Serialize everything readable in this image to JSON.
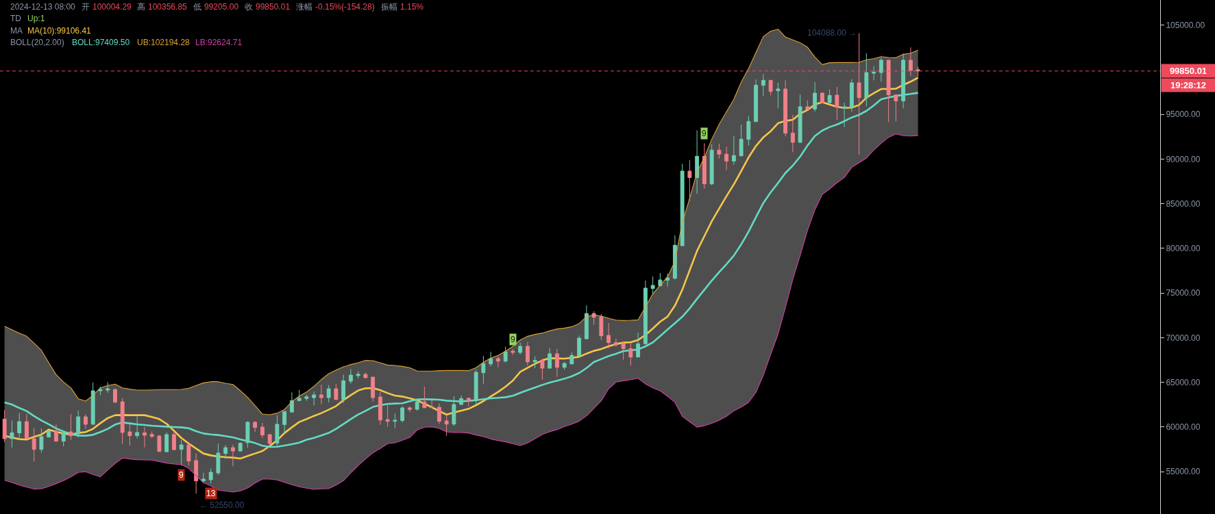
{
  "chart_data": {
    "type": "candlestick",
    "categories": [
      null,
      null,
      null,
      null,
      null,
      null,
      null,
      null,
      null,
      null,
      null,
      null,
      null,
      null,
      null,
      null,
      null,
      null,
      null,
      null,
      null,
      null,
      null,
      null,
      null,
      null,
      null,
      null,
      null,
      null,
      null,
      null,
      null,
      null,
      null,
      null,
      null,
      null,
      null,
      null,
      null,
      null,
      null,
      null,
      null,
      null,
      null,
      null,
      null,
      null,
      null,
      null,
      null,
      null,
      null,
      null,
      null,
      null,
      null,
      null,
      null,
      null,
      null,
      null,
      null,
      null,
      null,
      null,
      null,
      null,
      null,
      null,
      null,
      null,
      null,
      null,
      null,
      null,
      null,
      null,
      null,
      null,
      null,
      null,
      null,
      null,
      null,
      null,
      null,
      null,
      null,
      null,
      null,
      null,
      null,
      null,
      null,
      null,
      null,
      null,
      null,
      null,
      null,
      null,
      null,
      null,
      null,
      null,
      null,
      null,
      null,
      null,
      null,
      null,
      null,
      null,
      null,
      null,
      null,
      null,
      null,
      null,
      null,
      null,
      null
    ],
    "ohlc": [
      [
        60890,
        61910,
        58340,
        58700
      ],
      [
        58700,
        60740,
        57700,
        59360
      ],
      [
        59340,
        61560,
        58570,
        60610
      ],
      [
        60610,
        61480,
        58650,
        58700
      ],
      [
        58700,
        59870,
        56120,
        57500
      ],
      [
        57500,
        59850,
        57140,
        58930
      ],
      [
        58880,
        59670,
        58820,
        59560
      ],
      [
        59540,
        60310,
        58380,
        58420
      ],
      [
        58420,
        59540,
        57830,
        59360
      ],
      [
        59460,
        61450,
        58570,
        59030
      ],
      [
        59230,
        61840,
        58820,
        61150
      ],
      [
        61150,
        61430,
        59770,
        60310
      ],
      [
        60310,
        64980,
        60280,
        64060
      ],
      [
        64060,
        64520,
        63570,
        64210
      ],
      [
        64140,
        65030,
        63830,
        64290
      ],
      [
        64210,
        64300,
        62700,
        62780
      ],
      [
        62830,
        63240,
        58090,
        59390
      ],
      [
        59460,
        60280,
        57930,
        59030
      ],
      [
        59030,
        61200,
        58720,
        59390
      ],
      [
        59360,
        60000,
        57730,
        59080
      ],
      [
        59180,
        59510,
        58770,
        58950
      ],
      [
        59000,
        59110,
        57220,
        57270
      ],
      [
        57240,
        59410,
        57170,
        59160
      ],
      [
        59160,
        59510,
        57430,
        57470
      ],
      [
        57500,
        58540,
        55690,
        58010
      ],
      [
        58010,
        58290,
        55710,
        56200
      ],
      [
        56250,
        57060,
        52550,
        53970
      ],
      [
        53970,
        54890,
        53770,
        54180
      ],
      [
        54100,
        55380,
        53670,
        54940
      ],
      [
        54870,
        58140,
        54660,
        57090
      ],
      [
        57040,
        58010,
        56430,
        57700
      ],
      [
        57700,
        58010,
        55610,
        57320
      ],
      [
        57320,
        58290,
        57280,
        58190
      ],
      [
        58260,
        60660,
        57700,
        60540
      ],
      [
        60540,
        60660,
        59460,
        59950
      ],
      [
        60000,
        60460,
        58770,
        59110
      ],
      [
        59160,
        59200,
        57850,
        58160
      ],
      [
        58190,
        61330,
        57750,
        60310
      ],
      [
        60280,
        61760,
        59280,
        61740
      ],
      [
        61680,
        63880,
        61610,
        62960
      ],
      [
        62960,
        64160,
        62860,
        63220
      ],
      [
        63200,
        63600,
        62950,
        63380
      ],
      [
        63290,
        63980,
        62430,
        63600
      ],
      [
        63600,
        64750,
        62550,
        63290
      ],
      [
        63290,
        64700,
        62760,
        64290
      ],
      [
        64290,
        64830,
        63010,
        63090
      ],
      [
        63090,
        65870,
        62710,
        65180
      ],
      [
        65130,
        66490,
        64850,
        65820
      ],
      [
        65750,
        66260,
        65460,
        65920
      ],
      [
        65900,
        66130,
        65470,
        65520
      ],
      [
        65590,
        65640,
        62860,
        63290
      ],
      [
        63370,
        63930,
        60260,
        60790
      ],
      [
        60840,
        62400,
        60030,
        60640
      ],
      [
        60640,
        61510,
        59870,
        60770
      ],
      [
        60720,
        62320,
        60510,
        62150
      ],
      [
        62150,
        62320,
        61690,
        61970
      ],
      [
        61990,
        63120,
        61840,
        62810
      ],
      [
        62810,
        64520,
        62120,
        62170
      ],
      [
        62270,
        63010,
        62090,
        62170
      ],
      [
        62220,
        62660,
        60360,
        60640
      ],
      [
        60690,
        61330,
        59010,
        60330
      ],
      [
        60330,
        63450,
        60130,
        62530
      ],
      [
        62530,
        63550,
        62450,
        63190
      ],
      [
        63220,
        63320,
        62300,
        62940
      ],
      [
        62940,
        66430,
        62600,
        66130
      ],
      [
        66080,
        67970,
        64850,
        67120
      ],
      [
        67070,
        68430,
        66790,
        67660
      ],
      [
        67660,
        67910,
        66690,
        67380
      ],
      [
        67380,
        69010,
        67230,
        68430
      ],
      [
        68500,
        68710,
        68070,
        68350
      ],
      [
        68350,
        69450,
        68140,
        69040
      ],
      [
        69040,
        69520,
        66890,
        67300
      ],
      [
        67300,
        67920,
        66610,
        67460
      ],
      [
        67460,
        67660,
        65290,
        66590
      ],
      [
        66590,
        68860,
        66550,
        68200
      ],
      [
        68200,
        68760,
        65620,
        66690
      ],
      [
        66690,
        67280,
        66430,
        67120
      ],
      [
        67070,
        68350,
        67000,
        68020
      ],
      [
        67970,
        70240,
        67930,
        69960
      ],
      [
        69880,
        73630,
        69800,
        72710
      ],
      [
        72710,
        72970,
        71440,
        72280
      ],
      [
        72330,
        72660,
        69730,
        70210
      ],
      [
        70260,
        71640,
        68830,
        69450
      ],
      [
        69450,
        69910,
        68990,
        69190
      ],
      [
        69370,
        69500,
        67530,
        68780
      ],
      [
        68780,
        69420,
        66870,
        67840
      ],
      [
        67840,
        70570,
        67790,
        69320
      ],
      [
        69320,
        76390,
        69240,
        75550
      ],
      [
        75500,
        76850,
        74860,
        75860
      ],
      [
        75810,
        77240,
        75750,
        76470
      ],
      [
        76440,
        77190,
        75730,
        76700
      ],
      [
        76650,
        81470,
        76520,
        80350
      ],
      [
        80300,
        89470,
        80220,
        88650
      ],
      [
        88650,
        89870,
        85330,
        87930
      ],
      [
        87930,
        93220,
        86100,
        90310
      ],
      [
        90310,
        91760,
        86680,
        87220
      ],
      [
        87220,
        91640,
        87070,
        91000
      ],
      [
        91000,
        91710,
        90050,
        90540
      ],
      [
        90540,
        91380,
        88730,
        89770
      ],
      [
        89770,
        92550,
        89360,
        90390
      ],
      [
        90360,
        93860,
        90310,
        92220
      ],
      [
        92200,
        94830,
        91510,
        94210
      ],
      [
        94190,
        98910,
        94140,
        98270
      ],
      [
        98250,
        99500,
        97070,
        98810
      ],
      [
        98810,
        98860,
        97120,
        97560
      ],
      [
        97640,
        98530,
        95670,
        97840
      ],
      [
        97840,
        98810,
        92550,
        92890
      ],
      [
        92910,
        94950,
        90770,
        91870
      ],
      [
        91870,
        97200,
        91790,
        95850
      ],
      [
        95850,
        96560,
        95540,
        95590
      ],
      [
        95590,
        98610,
        95290,
        97380
      ],
      [
        97380,
        97460,
        96260,
        96310
      ],
      [
        96310,
        97790,
        96230,
        97120
      ],
      [
        97150,
        98070,
        94390,
        95800
      ],
      [
        95670,
        96310,
        93580,
        95850
      ],
      [
        95800,
        98940,
        95290,
        98530
      ],
      [
        98530,
        104088,
        90490,
        96870
      ],
      [
        96870,
        101850,
        95920,
        99680
      ],
      [
        99600,
        100390,
        98810,
        99730
      ],
      [
        99680,
        101290,
        98660,
        101060
      ],
      [
        101060,
        101100,
        94140,
        97180
      ],
      [
        97180,
        97230,
        94240,
        96510
      ],
      [
        96510,
        101800,
        95670,
        101060
      ],
      [
        101060,
        102490,
        99290,
        99930
      ],
      [
        100004.29,
        100356.85,
        99205.0,
        99850.01
      ]
    ],
    "colors": [
      "#f08089",
      "#6bcfb3",
      "#6bcfb3",
      "#f08089",
      "#f08089",
      "#6bcfb3",
      "#6bcfb3",
      "#f08089",
      "#6bcfb3",
      "#f08089",
      "#6bcfb3",
      "#f08089",
      "#6bcfb3",
      "#6bcfb3",
      "#6bcfb3",
      "#f08089",
      "#f08089",
      "#f08089",
      "#6bcfb3",
      "#f08089",
      "#f08089",
      "#f08089",
      "#6bcfb3",
      "#f08089",
      "#6bcfb3",
      "#f08089",
      "#f08089",
      "#6bcfb3",
      "#6bcfb3",
      "#6bcfb3",
      "#6bcfb3",
      "#f08089",
      "#6bcfb3",
      "#6bcfb3",
      "#f08089",
      "#f08089",
      "#f08089",
      "#6bcfb3",
      "#6bcfb3",
      "#6bcfb3",
      "#6bcfb3",
      "#6bcfb3",
      "#6bcfb3",
      "#f08089",
      "#6bcfb3",
      "#f08089",
      "#6bcfb3",
      "#6bcfb3",
      "#6bcfb3",
      "#f08089",
      "#f08089",
      "#f08089",
      "#f08089",
      "#6bcfb3",
      "#6bcfb3",
      "#f08089",
      "#6bcfb3",
      "#f08089",
      "#f08089",
      "#f08089",
      "#f08089",
      "#6bcfb3",
      "#6bcfb3",
      "#f08089",
      "#6bcfb3",
      "#6bcfb3",
      "#6bcfb3",
      "#f08089",
      "#6bcfb3",
      "#f08089",
      "#6bcfb3",
      "#f08089",
      "#6bcfb3",
      "#f08089",
      "#6bcfb3",
      "#f08089",
      "#6bcfb3",
      "#6bcfb3",
      "#6bcfb3",
      "#6bcfb3",
      "#f08089",
      "#f08089",
      "#f08089",
      "#f08089",
      "#f08089",
      "#f08089",
      "#6bcfb3",
      "#6bcfb3",
      "#6bcfb3",
      "#6bcfb3",
      "#6bcfb3",
      "#6bcfb3",
      "#6bcfb3",
      "#f08089",
      "#6bcfb3",
      "#f08089",
      "#6bcfb3",
      "#f08089",
      "#f08089",
      "#6bcfb3",
      "#6bcfb3",
      "#6bcfb3",
      "#6bcfb3",
      "#6bcfb3",
      "#f08089",
      "#6bcfb3",
      "#f08089",
      "#f08089",
      "#6bcfb3",
      "#f08089",
      "#6bcfb3",
      "#f08089",
      "#6bcfb3",
      "#f08089",
      "#6bcfb3",
      "#6bcfb3",
      "#f08089",
      "#6bcfb3",
      "#6bcfb3",
      "#6bcfb3",
      "#f08089",
      "#f08089",
      "#6bcfb3",
      "#f08089",
      "#f08089"
    ],
    "series": [
      {
        "name": "MA(10):99106.41",
        "type": "line",
        "color": "#f7c64a",
        "values": [
          59030,
          58830,
          58650,
          58600,
          58900,
          59160,
          59720,
          59490,
          59280,
          59160,
          59340,
          59440,
          59800,
          60430,
          61000,
          61330,
          61350,
          61330,
          61330,
          61330,
          61120,
          60890,
          60360,
          59590,
          58770,
          58160,
          57600,
          57040,
          56830,
          56710,
          56630,
          56580,
          56480,
          56760,
          57040,
          57320,
          57880,
          58520,
          59340,
          59970,
          60560,
          60900,
          61250,
          61560,
          61940,
          62350,
          63010,
          63570,
          64090,
          64340,
          64370,
          64140,
          63800,
          63520,
          63420,
          63220,
          63010,
          62600,
          62220,
          61790,
          61400,
          61630,
          61840,
          62040,
          62450,
          62910,
          63420,
          63930,
          64520,
          65210,
          66180,
          66640,
          67070,
          67460,
          67710,
          67690,
          67660,
          67760,
          67860,
          68220,
          68530,
          68730,
          69040,
          69290,
          69450,
          69500,
          69750,
          70310,
          71030,
          71800,
          72360,
          73590,
          75370,
          77540,
          79710,
          81370,
          83030,
          84440,
          85840,
          87170,
          88650,
          90180,
          91460,
          92430,
          93120,
          94010,
          94270,
          94390,
          95080,
          95490,
          96100,
          96360,
          96100,
          95850,
          95720,
          95750,
          96050,
          96870,
          97380,
          97840,
          97840,
          97870,
          98300,
          98660,
          99106.41
        ]
      },
      {
        "name": "BOLL:97409.50",
        "type": "line",
        "color": "#62dcc4",
        "values": [
          62760,
          62530,
          62140,
          61790,
          61230,
          60740,
          60310,
          59850,
          59510,
          59230,
          59050,
          59030,
          59130,
          59440,
          59800,
          60280,
          60510,
          60410,
          60310,
          60230,
          60150,
          60100,
          60050,
          60000,
          59970,
          59870,
          59540,
          59280,
          59180,
          59110,
          58980,
          58850,
          58620,
          58420,
          58210,
          57910,
          57780,
          57800,
          57930,
          58080,
          58260,
          58580,
          58800,
          59060,
          59340,
          59800,
          60330,
          60890,
          61400,
          61810,
          62250,
          62450,
          62580,
          62630,
          62660,
          62890,
          63090,
          63120,
          63090,
          63060,
          62960,
          62910,
          62860,
          62940,
          63010,
          63120,
          63220,
          63270,
          63340,
          63500,
          63830,
          64140,
          64420,
          64720,
          64980,
          65180,
          65410,
          65690,
          66050,
          66610,
          67280,
          67610,
          67940,
          68200,
          68500,
          68600,
          68680,
          69040,
          69470,
          70190,
          70910,
          71630,
          72350,
          73280,
          74350,
          75370,
          76390,
          77340,
          78230,
          79200,
          80450,
          81880,
          83490,
          85070,
          86270,
          87320,
          88440,
          89260,
          90280,
          91510,
          92580,
          93190,
          93580,
          93860,
          94240,
          94650,
          94950,
          95390,
          96000,
          96690,
          96890,
          97050,
          97180,
          97280,
          97409.5
        ],
        "lower": [
          54050,
          53800,
          53510,
          53280,
          53060,
          53080,
          53360,
          53670,
          54000,
          54430,
          54920,
          55000,
          54690,
          54430,
          55200,
          55910,
          56530,
          56430,
          56350,
          56320,
          56300,
          56140,
          55970,
          55860,
          55790,
          55380,
          54560,
          53770,
          53410,
          52950,
          52830,
          52720,
          52850,
          53180,
          53740,
          54180,
          54180,
          54080,
          53820,
          53540,
          53310,
          53160,
          53030,
          53080,
          53100,
          53500,
          54000,
          54870,
          55710,
          56430,
          57120,
          57600,
          58140,
          58240,
          58520,
          58830,
          59670,
          59980,
          60030,
          59850,
          59460,
          59390,
          59390,
          59340,
          59110,
          58930,
          58670,
          58490,
          58340,
          58140,
          57930,
          58210,
          58700,
          59180,
          59490,
          59720,
          60050,
          60330,
          60660,
          61250,
          62090,
          62940,
          64290,
          65030,
          65180,
          65310,
          65460,
          64830,
          64390,
          64060,
          63450,
          62760,
          61200,
          60590,
          59990,
          60160,
          60420,
          60770,
          61200,
          61810,
          62240,
          62760,
          63890,
          65790,
          68130,
          70400,
          73380,
          76520,
          79200,
          82010,
          84310,
          86040,
          86660,
          87350,
          87930,
          89060,
          89590,
          90100,
          91020,
          91760,
          92430,
          92810,
          92610,
          92580,
          92624.71
        ],
        "upper": [
          71280,
          70900,
          70520,
          70160,
          69390,
          68580,
          67200,
          65870,
          65050,
          64390,
          63170,
          62910,
          63550,
          64390,
          64650,
          64800,
          64390,
          64240,
          64140,
          64140,
          64160,
          64190,
          64190,
          64190,
          64210,
          64340,
          64650,
          64950,
          65080,
          65080,
          64900,
          64770,
          64080,
          63320,
          62400,
          61450,
          61380,
          61560,
          61970,
          62860,
          63470,
          63930,
          64560,
          65320,
          65970,
          66380,
          66740,
          67000,
          67200,
          67460,
          67430,
          67200,
          66940,
          66890,
          66790,
          66640,
          66280,
          66260,
          66260,
          66310,
          66330,
          66330,
          66330,
          66310,
          66640,
          67250,
          67710,
          68020,
          68480,
          69040,
          69750,
          70160,
          70370,
          70520,
          70770,
          70980,
          71080,
          71230,
          71590,
          72360,
          72560,
          72430,
          72180,
          71970,
          71920,
          71950,
          72000,
          73450,
          74910,
          75880,
          76800,
          78560,
          82900,
          85590,
          88520,
          90180,
          92220,
          93880,
          95290,
          96690,
          98610,
          100140,
          101920,
          103710,
          104320,
          104530,
          103660,
          103330,
          103020,
          102510,
          101410,
          100570,
          100780,
          100800,
          100800,
          100800,
          100830,
          101110,
          101230,
          101460,
          101360,
          101340,
          101720,
          101850,
          102194.28
        ]
      },
      {
        "name": "UB:102194.28",
        "type": "line",
        "color": "#dca236",
        "values": [
          71280,
          70900,
          70520,
          70160,
          69390,
          68580,
          67200,
          65870,
          65050,
          64390,
          63170,
          62910,
          63550,
          64390,
          64650,
          64800,
          64390,
          64240,
          64140,
          64140,
          64160,
          64190,
          64190,
          64190,
          64210,
          64340,
          64650,
          64950,
          65080,
          65080,
          64900,
          64770,
          64080,
          63320,
          62400,
          61450,
          61380,
          61560,
          61970,
          62860,
          63470,
          63930,
          64560,
          65320,
          65970,
          66380,
          66740,
          67000,
          67200,
          67460,
          67430,
          67200,
          66940,
          66890,
          66790,
          66640,
          66280,
          66260,
          66260,
          66310,
          66330,
          66330,
          66330,
          66310,
          66640,
          67250,
          67710,
          68020,
          68480,
          69040,
          69750,
          70160,
          70370,
          70520,
          70770,
          70980,
          71080,
          71230,
          71590,
          72360,
          72560,
          72430,
          72180,
          71970,
          71920,
          71950,
          72000,
          73450,
          74910,
          75880,
          76800,
          78560,
          82900,
          85590,
          88520,
          90180,
          92220,
          93880,
          95290,
          96690,
          98610,
          100140,
          101920,
          103710,
          104320,
          104530,
          103660,
          103330,
          103020,
          102510,
          101410,
          100570,
          100780,
          100800,
          100800,
          100800,
          100830,
          101110,
          101230,
          101460,
          101360,
          101340,
          101720,
          101850,
          102194.28
        ]
      },
      {
        "name": "LB:92624.71",
        "type": "line",
        "color": "#d33ea6",
        "values": [
          54050,
          53800,
          53510,
          53280,
          53060,
          53080,
          53360,
          53670,
          54000,
          54430,
          54920,
          55000,
          54690,
          54430,
          55200,
          55910,
          56530,
          56430,
          56350,
          56320,
          56300,
          56140,
          55970,
          55860,
          55790,
          55380,
          54560,
          53770,
          53410,
          52950,
          52830,
          52720,
          52850,
          53180,
          53740,
          54180,
          54180,
          54080,
          53820,
          53540,
          53310,
          53160,
          53030,
          53080,
          53100,
          53500,
          54000,
          54870,
          55710,
          56430,
          57120,
          57600,
          58140,
          58240,
          58520,
          58830,
          59670,
          59980,
          60030,
          59850,
          59460,
          59390,
          59390,
          59340,
          59110,
          58930,
          58670,
          58490,
          58340,
          58140,
          57930,
          58210,
          58700,
          59180,
          59490,
          59720,
          60050,
          60330,
          60660,
          61250,
          62090,
          62940,
          64290,
          65030,
          65180,
          65310,
          65460,
          64830,
          64390,
          64060,
          63450,
          62760,
          61200,
          60590,
          59990,
          60160,
          60420,
          60770,
          61200,
          61810,
          62240,
          62760,
          63890,
          65790,
          68130,
          70400,
          73380,
          76520,
          79200,
          82010,
          84310,
          86040,
          86660,
          87350,
          87930,
          89060,
          89590,
          90100,
          91020,
          91760,
          92430,
          92810,
          92610,
          92580,
          92624.71
        ]
      }
    ],
    "ylim": [
      50270,
      107800
    ],
    "yticks": [
      {
        "value": 55000,
        "label": "55000.00"
      },
      {
        "value": 60000,
        "label": "60000.00"
      },
      {
        "value": 65000,
        "label": "65000.00"
      },
      {
        "value": 70000,
        "label": "70000.00"
      },
      {
        "value": 75000,
        "label": "75000.00"
      },
      {
        "value": 80000,
        "label": "80000.00"
      },
      {
        "value": 85000,
        "label": "85000.00"
      },
      {
        "value": 90000,
        "label": "90000.00"
      },
      {
        "value": 95000,
        "label": "95000.00"
      },
      {
        "value": 105000,
        "label": "105000.00"
      }
    ],
    "ref_lines": [
      {
        "axis": "y",
        "value": 99850.01,
        "color": "#ee4a5c",
        "line_style": "dashed"
      }
    ],
    "annotations": [
      "2024-12-13 08:00",
      "开",
      "100004.29",
      "高",
      "100356.85",
      "低",
      "99205.00",
      "收",
      "99850.01",
      "涨幅",
      "-0.15%(-154.28)",
      "振幅",
      "1.15%",
      "TD",
      "Up:1",
      "MA",
      "BOLL(20,2.00)",
      "99850.01",
      "19:28:12",
      "104088.00 →",
      {
        "text": "9",
        "y": 55690
      },
      {
        "text": "13",
        "y": 53670
      },
      {
        "text": "9",
        "y": 68710
      },
      {
        "text": "9",
        "y": 91760
      },
      {
        "text": "← 52550.00",
        "y": 52550
      }
    ],
    "legend": "top left",
    "tick_labels": "y"
  }
}
